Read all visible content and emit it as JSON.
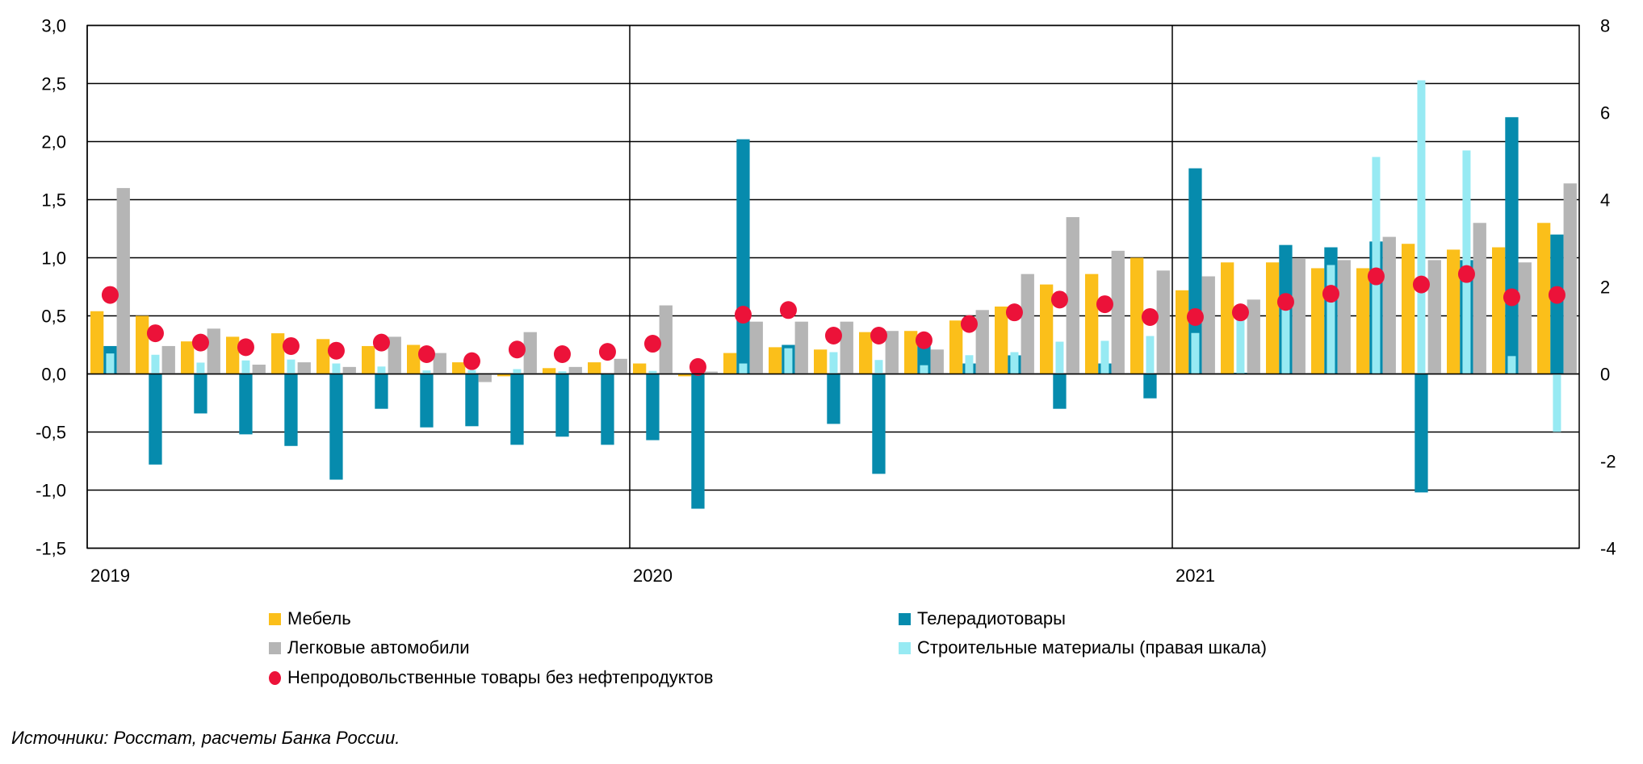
{
  "chart_data": {
    "type": "bar",
    "title": "",
    "xlabel": "",
    "ylabel": "",
    "ylim": [
      -1.5,
      3.0
    ],
    "y2lim": [
      -4,
      8
    ],
    "yticks": [
      "-1,5",
      "-1,0",
      "-0,5",
      "0,0",
      "0,5",
      "1,0",
      "1,5",
      "2,0",
      "2,5",
      "3,0"
    ],
    "y2ticks": [
      "-4",
      "-2",
      "0",
      "2",
      "4",
      "6",
      "8"
    ],
    "ytick_values": [
      -1.5,
      -1.0,
      -0.5,
      0.0,
      0.5,
      1.0,
      1.5,
      2.0,
      2.5,
      3.0
    ],
    "y2tick_values": [
      -4,
      -2,
      0,
      2,
      4,
      6,
      8
    ],
    "year_labels": [
      "2019",
      "2020",
      "2021"
    ],
    "grid": true,
    "legend_position": "bottom",
    "categories": [
      "2019-01",
      "2019-02",
      "2019-03",
      "2019-04",
      "2019-05",
      "2019-06",
      "2019-07",
      "2019-08",
      "2019-09",
      "2019-10",
      "2019-11",
      "2019-12",
      "2020-01",
      "2020-02",
      "2020-03",
      "2020-04",
      "2020-05",
      "2020-06",
      "2020-07",
      "2020-08",
      "2020-09",
      "2020-10",
      "2020-11",
      "2020-12",
      "2021-01",
      "2021-02",
      "2021-03",
      "2021-04",
      "2021-05",
      "2021-06",
      "2021-07",
      "2021-08",
      "2021-09"
    ],
    "series": [
      {
        "name": "Мебель",
        "kind": "bar",
        "axis": "left",
        "color": "#FBBF1A",
        "values": [
          0.54,
          0.5,
          0.28,
          0.32,
          0.35,
          0.3,
          0.24,
          0.25,
          0.1,
          -0.02,
          0.05,
          0.1,
          0.09,
          -0.02,
          0.18,
          0.23,
          0.21,
          0.36,
          0.37,
          0.46,
          0.58,
          0.77,
          0.86,
          1.0,
          0.72,
          0.96,
          0.96,
          0.91,
          0.91,
          1.12,
          1.07,
          1.09,
          1.3
        ]
      },
      {
        "name": "Телерадиотовары",
        "kind": "bar",
        "axis": "left",
        "color": "#068BAD",
        "values": [
          0.24,
          -0.78,
          -0.34,
          -0.52,
          -0.62,
          -0.91,
          -0.3,
          -0.46,
          -0.45,
          -0.61,
          -0.54,
          -0.61,
          -0.57,
          -1.16,
          2.02,
          0.25,
          -0.43,
          -0.86,
          0.25,
          0.09,
          0.16,
          -0.3,
          0.09,
          -0.21,
          1.77,
          0.01,
          1.11,
          1.09,
          1.14,
          -1.02,
          0.98,
          2.21,
          1.2
        ]
      },
      {
        "name": "Легковые автомобили",
        "kind": "bar",
        "axis": "left",
        "color": "#B5B5B5",
        "values": [
          1.6,
          0.24,
          0.39,
          0.08,
          0.1,
          0.06,
          0.32,
          0.18,
          -0.07,
          0.36,
          0.06,
          0.13,
          0.59,
          0.02,
          0.45,
          0.45,
          0.45,
          0.37,
          0.21,
          0.55,
          0.86,
          1.35,
          1.06,
          0.89,
          0.84,
          0.64,
          0.99,
          0.98,
          1.18,
          0.98,
          1.3,
          0.96,
          1.64
        ]
      },
      {
        "name": "Строительные материалы (правая шкала)",
        "kind": "bar",
        "axis": "right",
        "color": "#97EAF3",
        "values": [
          0.47,
          0.44,
          0.26,
          0.31,
          0.33,
          0.24,
          0.17,
          0.08,
          0.09,
          0.11,
          0.06,
          -0.01,
          0.07,
          0.01,
          0.24,
          0.59,
          0.5,
          0.32,
          0.2,
          0.43,
          0.5,
          0.74,
          0.76,
          0.87,
          0.94,
          1.25,
          1.48,
          2.5,
          4.98,
          6.74,
          5.13,
          0.41,
          -1.33
        ]
      },
      {
        "name": "Непродовольственные товары без нефтепродуктов",
        "kind": "dot",
        "axis": "left",
        "color": "#EC1239",
        "values": [
          0.68,
          0.35,
          0.27,
          0.23,
          0.24,
          0.2,
          0.27,
          0.17,
          0.11,
          0.21,
          0.17,
          0.19,
          0.26,
          0.06,
          0.51,
          0.55,
          0.33,
          0.33,
          0.29,
          0.43,
          0.53,
          0.64,
          0.6,
          0.49,
          0.49,
          0.53,
          0.62,
          0.69,
          0.84,
          0.77,
          0.86,
          0.66,
          0.68
        ]
      }
    ]
  },
  "legend": {
    "items": [
      {
        "label": "Мебель",
        "color": "#FBBF1A",
        "shape": "square"
      },
      {
        "label": "Телерадиотовары",
        "color": "#068BAD",
        "shape": "square"
      },
      {
        "label": "Легковые автомобили",
        "color": "#B5B5B5",
        "shape": "square"
      },
      {
        "label": "Строительные материалы (правая шкала)",
        "color": "#97EAF3",
        "shape": "square"
      },
      {
        "label": "Непродовольственные товары без нефтепродуктов",
        "color": "#EC1239",
        "shape": "circle"
      }
    ]
  },
  "footer": {
    "source": "Источники: Росстат, расчеты Банка России."
  }
}
